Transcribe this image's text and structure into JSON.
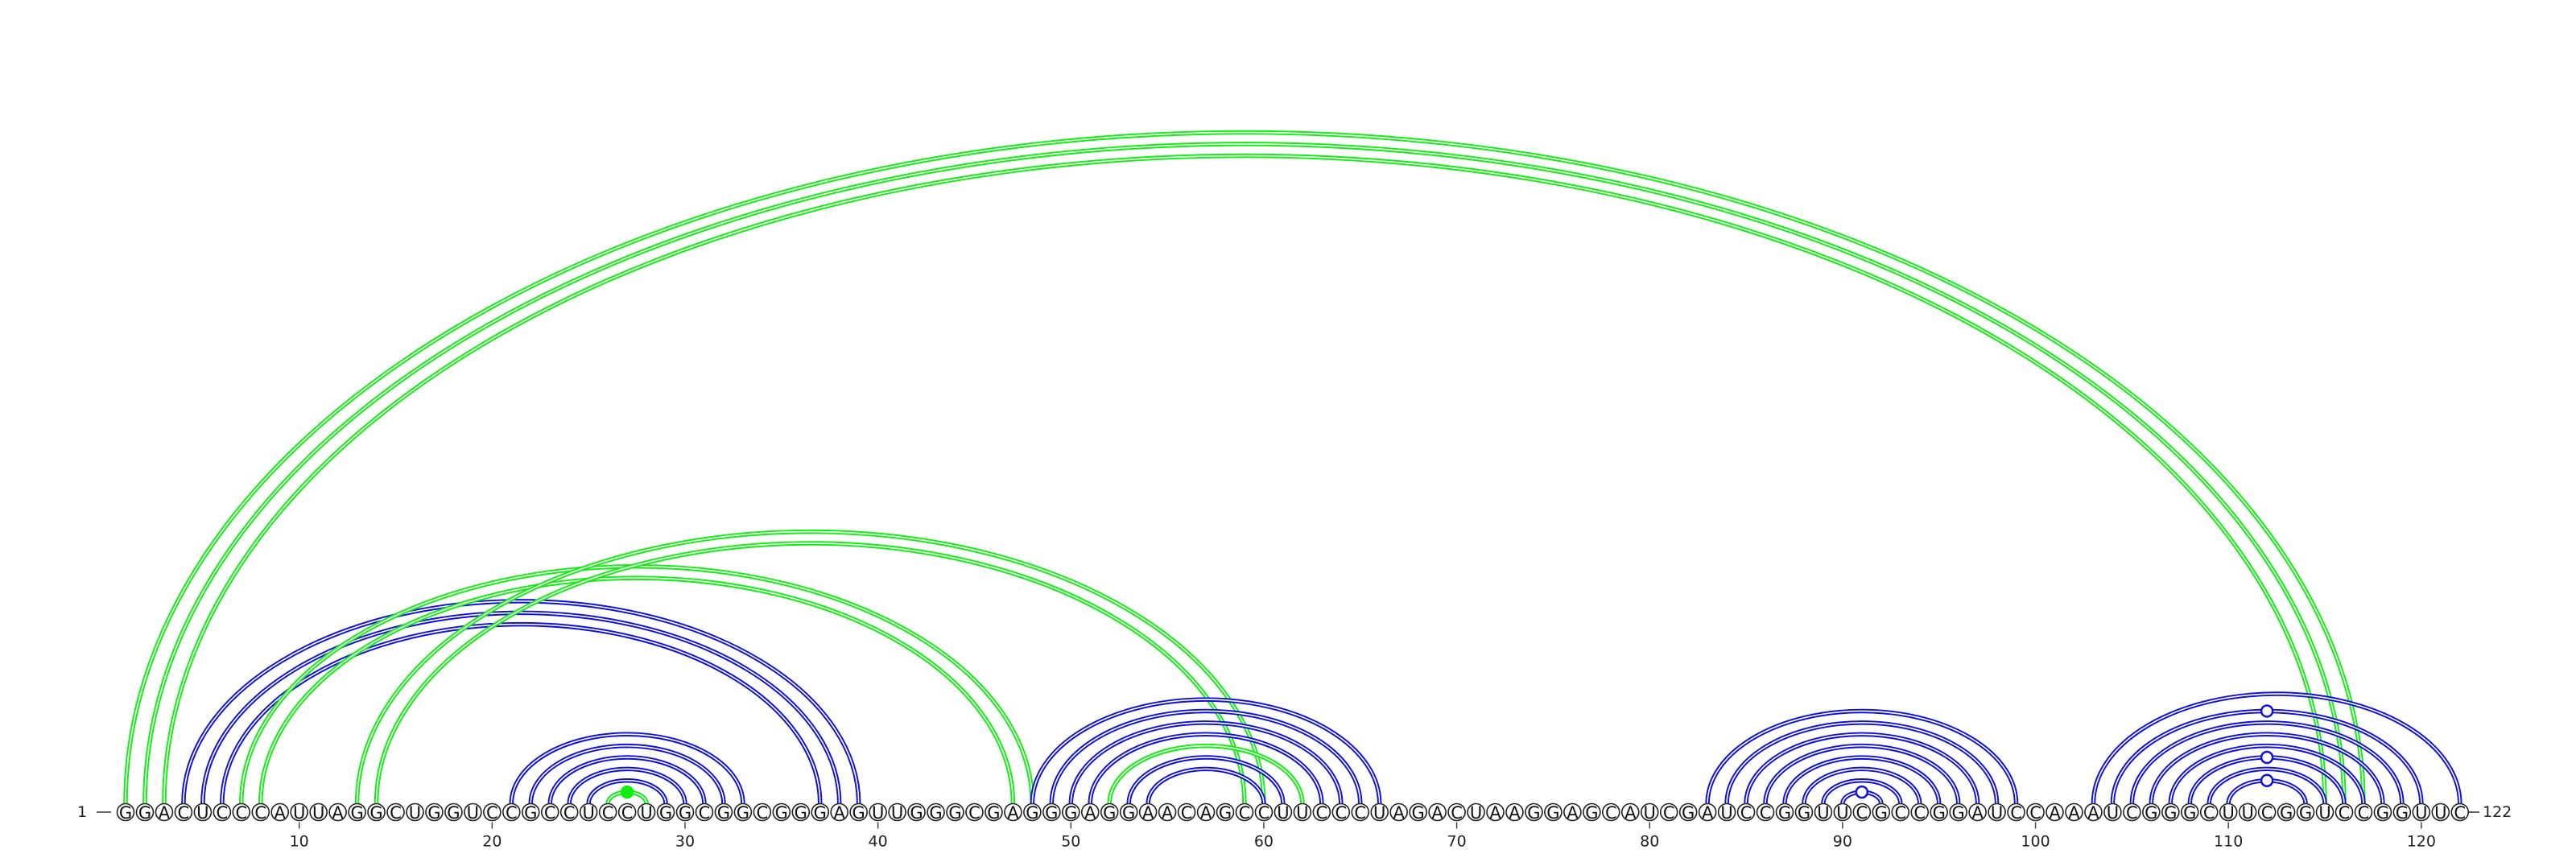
{
  "sequence": "GGACUCCCAUUAGGCUGGUCCGCCUCCUGGCGGCGGGAGUUGGGCGAGGGAGGAACAGCCUUCCCUAGACUAAGGAGCAUCGAUCCGGUUCGCCGGAUCCAAAUCGGGCUUCGGUCCGGUUC",
  "start_label": "1",
  "end_label": "122",
  "tick_positions": [
    10,
    20,
    30,
    40,
    50,
    60,
    70,
    80,
    90,
    100,
    110,
    120
  ],
  "tick_labels": [
    "10",
    "20",
    "30",
    "40",
    "50",
    "60",
    "70",
    "80",
    "90",
    "100",
    "110",
    "120"
  ],
  "colors": {
    "blue": "#1010dd",
    "green": "#11ee11"
  },
  "pairs": [
    {
      "i": 1,
      "j": 117,
      "color": "green"
    },
    {
      "i": 2,
      "j": 116,
      "color": "green"
    },
    {
      "i": 3,
      "j": 115,
      "color": "green"
    },
    {
      "i": 4,
      "j": 39,
      "color": "blue"
    },
    {
      "i": 5,
      "j": 38,
      "color": "blue"
    },
    {
      "i": 6,
      "j": 37,
      "color": "blue"
    },
    {
      "i": 7,
      "j": 48,
      "color": "green"
    },
    {
      "i": 8,
      "j": 47,
      "color": "green"
    },
    {
      "i": 13,
      "j": 60,
      "color": "green"
    },
    {
      "i": 14,
      "j": 59,
      "color": "green"
    },
    {
      "i": 21,
      "j": 33,
      "color": "blue"
    },
    {
      "i": 22,
      "j": 32,
      "color": "blue"
    },
    {
      "i": 23,
      "j": 31,
      "color": "blue"
    },
    {
      "i": 24,
      "j": 30,
      "color": "blue"
    },
    {
      "i": 25,
      "j": 29,
      "color": "blue"
    },
    {
      "i": 26,
      "j": 28,
      "color": "green",
      "marker": "filled"
    },
    {
      "i": 48,
      "j": 66,
      "color": "blue"
    },
    {
      "i": 49,
      "j": 65,
      "color": "blue"
    },
    {
      "i": 50,
      "j": 64,
      "color": "blue"
    },
    {
      "i": 51,
      "j": 63,
      "color": "blue"
    },
    {
      "i": 52,
      "j": 62,
      "color": "green"
    },
    {
      "i": 53,
      "j": 61,
      "color": "blue"
    },
    {
      "i": 54,
      "j": 60,
      "color": "blue"
    },
    {
      "i": 83,
      "j": 99,
      "color": "blue"
    },
    {
      "i": 84,
      "j": 98,
      "color": "blue"
    },
    {
      "i": 85,
      "j": 97,
      "color": "blue"
    },
    {
      "i": 86,
      "j": 96,
      "color": "blue"
    },
    {
      "i": 87,
      "j": 95,
      "color": "blue"
    },
    {
      "i": 88,
      "j": 94,
      "color": "blue"
    },
    {
      "i": 89,
      "j": 93,
      "color": "blue"
    },
    {
      "i": 90,
      "j": 92,
      "color": "blue",
      "marker": "open"
    },
    {
      "i": 103,
      "j": 122,
      "color": "blue"
    },
    {
      "i": 104,
      "j": 120,
      "color": "blue",
      "marker": "open"
    },
    {
      "i": 105,
      "j": 119,
      "color": "blue"
    },
    {
      "i": 106,
      "j": 118,
      "color": "blue"
    },
    {
      "i": 107,
      "j": 117,
      "color": "blue"
    },
    {
      "i": 108,
      "j": 116,
      "color": "blue",
      "marker": "open"
    },
    {
      "i": 109,
      "j": 115,
      "color": "blue"
    },
    {
      "i": 110,
      "j": 114,
      "color": "blue",
      "marker": "open"
    }
  ]
}
